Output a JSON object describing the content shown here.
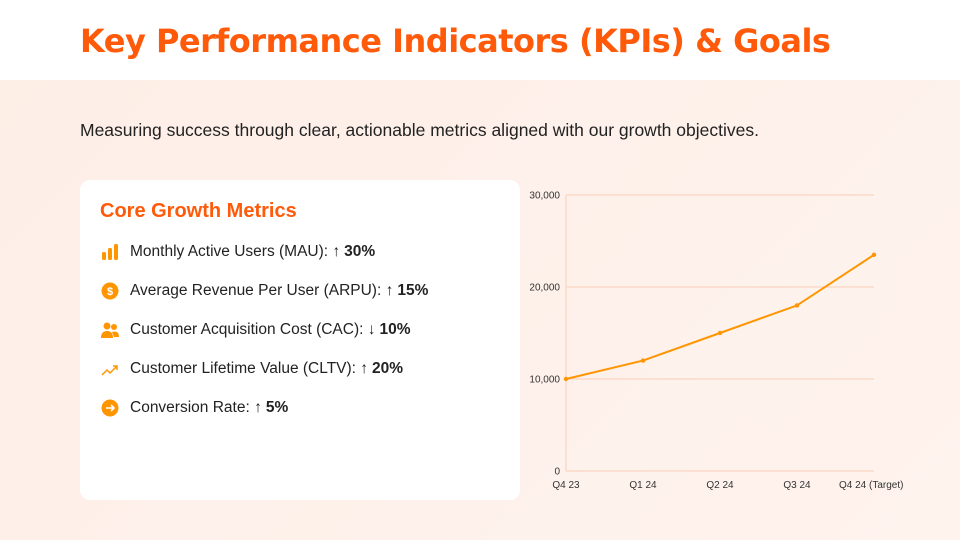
{
  "header": {
    "title": "Key Performance Indicators (KPIs) & Goals"
  },
  "subtitle": "Measuring success through clear, actionable metrics aligned with our growth objectives.",
  "card": {
    "title": "Core Growth Metrics",
    "items": [
      {
        "label": "Monthly Active Users (MAU):",
        "arrow": "↑",
        "value": "30%",
        "icon": "bar-chart-icon"
      },
      {
        "label": "Average Revenue Per User (ARPU):",
        "arrow": "↑",
        "value": "15%",
        "icon": "dollar-circle-icon"
      },
      {
        "label": "Customer Acquisition Cost (CAC):",
        "arrow": "↓",
        "value": "10%",
        "icon": "users-icon"
      },
      {
        "label": "Customer Lifetime Value (CLTV):",
        "arrow": "↑",
        "value": "20%",
        "icon": "trending-up-icon"
      },
      {
        "label": "Conversion Rate:",
        "arrow": "↑",
        "value": "5%",
        "icon": "arrow-right-circle-icon"
      }
    ]
  },
  "colors": {
    "accent": "#ff5a0a",
    "icon": "#ff9500",
    "line": "#ff9500"
  },
  "chart_data": {
    "type": "line",
    "categories": [
      "Q4 23",
      "Q1 24",
      "Q2 24",
      "Q3 24",
      "Q4 24 (Target)"
    ],
    "values": [
      10000,
      12000,
      15000,
      18000,
      23500
    ],
    "ylim": [
      0,
      30000
    ],
    "yticks": [
      "0",
      "10,000",
      "20,000",
      "30,000"
    ],
    "grid": true,
    "title": "",
    "xlabel": "",
    "ylabel": ""
  }
}
